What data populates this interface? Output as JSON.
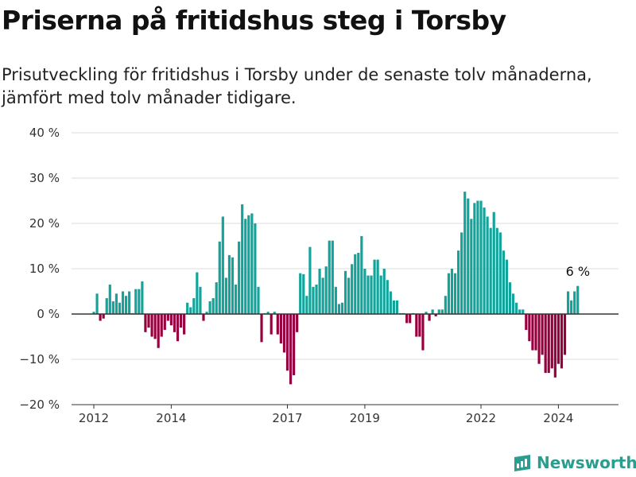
{
  "title": "Priserna på fritidshus steg i Torsby",
  "subtitle": "Prisutveckling för fritidshus i Torsby under de senaste tolv månaderna, jämfört med tolv månader tidigare.",
  "brand": "Newsworthy",
  "colors": {
    "positive": "#12a39a",
    "negative": "#97003f",
    "zero_line": "#333333",
    "grid": "#dddddd",
    "brand": "#2a9d8f"
  },
  "chart_data": {
    "type": "bar",
    "y_ticks": [
      "40 %",
      "30 %",
      "20 %",
      "10 %",
      "0 %",
      "−10 %",
      "−20 %"
    ],
    "y_tick_values": [
      40,
      30,
      20,
      10,
      0,
      -10,
      -20
    ],
    "ylim": [
      -20,
      40
    ],
    "x_ticks": [
      "2012",
      "2014",
      "2017",
      "2019",
      "2022",
      "2024"
    ],
    "x_tick_positions": [
      2012.0,
      2014.0,
      2017.0,
      2019.0,
      2022.0,
      2024.0
    ],
    "annotation": {
      "text": "6 %",
      "value": 6
    },
    "x_start": 2012.0,
    "x_end": 2025.0,
    "values": [
      0.5,
      4.5,
      -1.5,
      -1.0,
      3.5,
      6.5,
      2.8,
      4.5,
      2.5,
      5.0,
      4.0,
      5.0,
      0.2,
      5.5,
      5.5,
      7.2,
      -4.0,
      -3.0,
      -5.0,
      -5.5,
      -7.5,
      -5.0,
      -3.5,
      -1.5,
      -2.5,
      -4.0,
      -6.0,
      -3.0,
      -4.5,
      2.5,
      1.5,
      3.5,
      9.2,
      6.0,
      -1.5,
      0.5,
      2.8,
      3.5,
      7.0,
      16.0,
      21.5,
      8.0,
      13.0,
      12.5,
      6.5,
      16.0,
      24.2,
      21.0,
      21.8,
      22.2,
      20.0,
      6.0,
      -6.2,
      0.2,
      0.5,
      -4.5,
      0.5,
      -4.5,
      -6.5,
      -8.5,
      -12.5,
      -15.5,
      -13.5,
      -4.0,
      9.0,
      8.8,
      4.0,
      14.8,
      6.0,
      6.5,
      10.0,
      8.0,
      10.5,
      16.2,
      16.2,
      6.0,
      2.2,
      2.5,
      9.5,
      8.0,
      11.0,
      13.2,
      13.5,
      17.2,
      10.0,
      8.5,
      8.5,
      12.0,
      12.0,
      8.5,
      10.0,
      7.5,
      5.0,
      3.0,
      3.0,
      0.2,
      0.2,
      -2.0,
      -2.0,
      0.2,
      -5.0,
      -5.0,
      -8.0,
      0.5,
      -1.5,
      1.0,
      -0.5,
      1.0,
      1.0,
      4.0,
      9.0,
      10.0,
      9.0,
      14.0,
      18.0,
      27.0,
      25.5,
      21.0,
      24.5,
      25.0,
      25.0,
      23.5,
      21.5,
      19.0,
      22.5,
      19.0,
      18.0,
      14.0,
      12.0,
      7.0,
      4.5,
      2.5,
      1.0,
      1.0,
      -3.5,
      -6.0,
      -8.0,
      -8.0,
      -11.0,
      -9.0,
      -13.0,
      -13.0,
      -12.0,
      -14.0,
      -11.0,
      -12.0,
      -9.0,
      5.0,
      3.0,
      5.0,
      6.2
    ]
  }
}
